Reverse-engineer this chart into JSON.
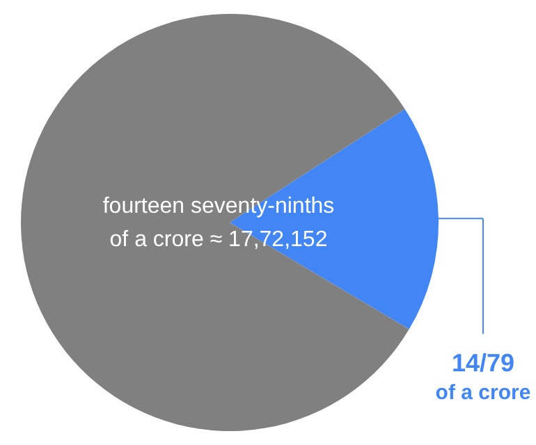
{
  "chart_data": {
    "type": "pie",
    "categories": [
      "14/79 of a crore",
      null
    ],
    "values": [
      17.72,
      82.28
    ],
    "colors": [
      "#4285f4",
      "#808080"
    ],
    "annotations": [
      "fourteen seventy-ninths",
      "of a crore ≈ 17,72,152"
    ]
  }
}
